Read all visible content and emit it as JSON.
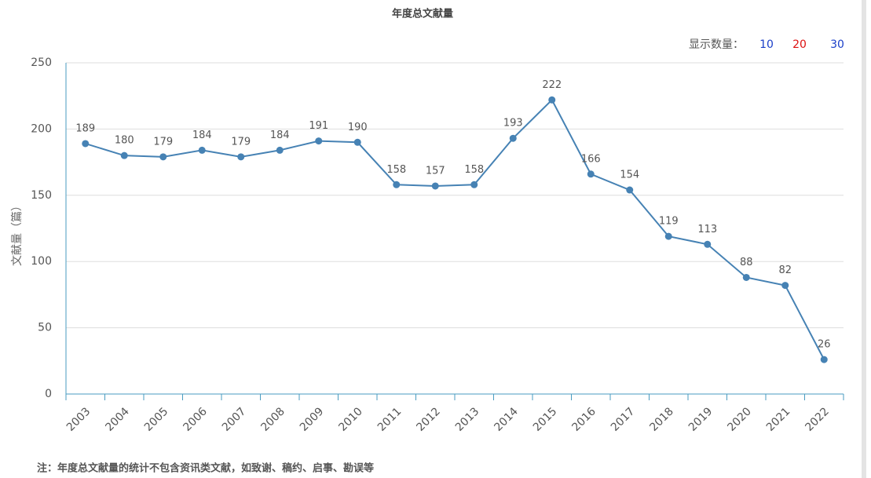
{
  "chart_data": {
    "type": "line",
    "title": "年度总文献量",
    "y_label": "文献量（篇）",
    "categories": [
      "2003",
      "2004",
      "2005",
      "2006",
      "2007",
      "2008",
      "2009",
      "2010",
      "2011",
      "2012",
      "2013",
      "2014",
      "2015",
      "2016",
      "2017",
      "2018",
      "2019",
      "2020",
      "2021",
      "2022"
    ],
    "values": [
      189,
      180,
      179,
      184,
      179,
      184,
      191,
      190,
      158,
      157,
      158,
      193,
      222,
      166,
      154,
      119,
      113,
      88,
      82,
      26
    ],
    "color": "#4682b4",
    "ylim": [
      0,
      250
    ],
    "yticks": [
      0,
      50,
      100,
      150,
      200,
      250
    ],
    "grid": true
  },
  "controls": {
    "label": "显示数量：",
    "options": [
      "10",
      "20",
      "30"
    ]
  },
  "note": "注：年度总文献量的统计不包含资讯类文献，如致谢、稿约、启事、勘误等"
}
